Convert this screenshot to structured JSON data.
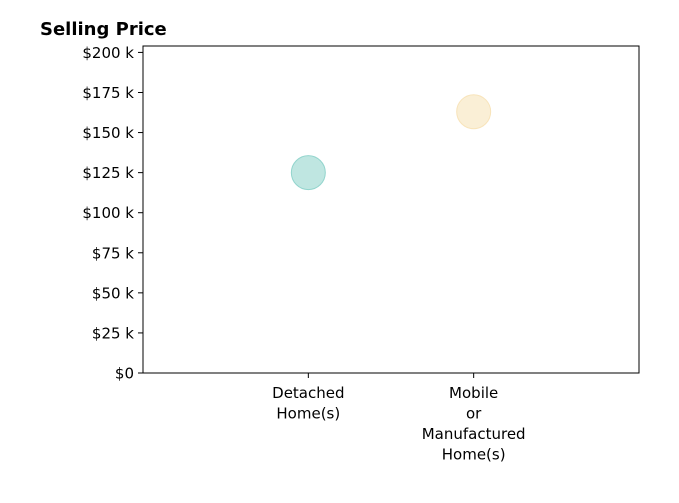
{
  "chart_data": {
    "type": "scatter",
    "title": "Selling Price",
    "xlabel": "",
    "ylabel": "",
    "categories": [
      [
        "Detached",
        "Home(s)"
      ],
      [
        "Mobile",
        "or",
        "Manufactured",
        "Home(s)"
      ]
    ],
    "category_range": [
      -1,
      2
    ],
    "ylim": [
      0,
      204000
    ],
    "yticks": [
      0,
      25000,
      50000,
      75000,
      100000,
      125000,
      150000,
      175000,
      200000
    ],
    "ytick_labels": [
      "$0",
      "$25 k",
      "$50 k",
      "$75 k",
      "$100 k",
      "$125 k",
      "$150 k",
      "$175 k",
      "$200 k"
    ],
    "points": [
      {
        "category": 0,
        "value": 125000,
        "color": "#7fcdc4"
      },
      {
        "category": 1,
        "value": 163000,
        "color": "#f6dfae"
      }
    ],
    "grid": false,
    "legend": "none"
  }
}
